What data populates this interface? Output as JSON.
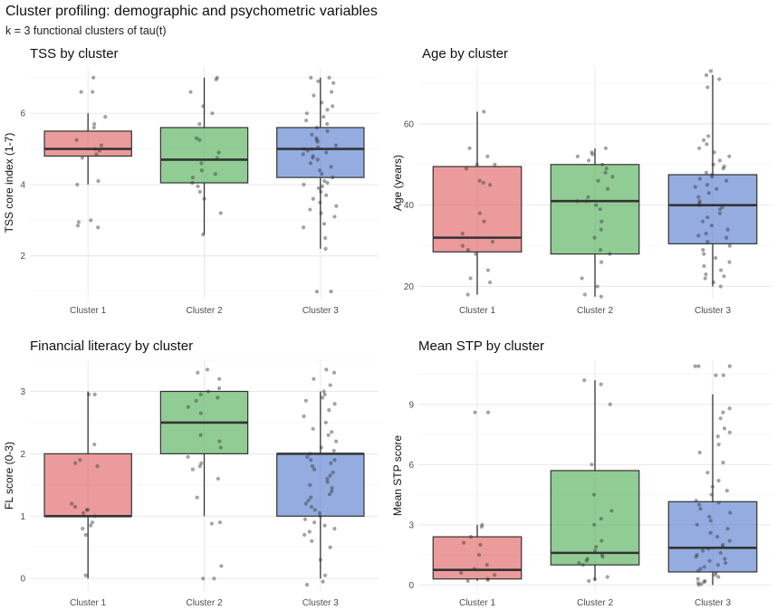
{
  "title": "Cluster profiling: demographic and psychometric variables",
  "subtitle": "k = 3 functional clusters of tau(t)",
  "colors": {
    "Cluster 1": "#e06666",
    "Cluster 2": "#58b05c",
    "Cluster 3": "#5b7fcf"
  },
  "chart_data": [
    {
      "type": "box",
      "title": "TSS by cluster",
      "xlabel": "",
      "ylabel": "TSS core index (1-7)",
      "categories": [
        "Cluster 1",
        "Cluster 2",
        "Cluster 3"
      ],
      "ylim": [
        0.8,
        7.3
      ],
      "yticks": [
        2,
        4,
        6
      ],
      "boxes": [
        {
          "q1": 4.8,
          "median": 5.0,
          "q3": 5.5,
          "whisker_low": 4.0,
          "whisker_high": 6.0
        },
        {
          "q1": 4.05,
          "median": 4.7,
          "q3": 5.6,
          "whisker_low": 2.6,
          "whisker_high": 7.0
        },
        {
          "q1": 4.2,
          "median": 5.0,
          "q3": 5.6,
          "whisker_low": 2.2,
          "whisker_high": 7.0
        }
      ],
      "points": [
        [
          7.0,
          6.6,
          6.6,
          5.9,
          5.7,
          5.6,
          5.25,
          5.1,
          5.0,
          4.95,
          4.85,
          4.75,
          4.1,
          4.0,
          3.0,
          2.95,
          2.85,
          2.8
        ],
        [
          7.0,
          6.95,
          6.6,
          6.2,
          6.0,
          5.7,
          5.3,
          5.25,
          4.9,
          4.75,
          4.6,
          4.4,
          4.3,
          4.2,
          4.05,
          3.95,
          3.8,
          3.6,
          3.2,
          2.6
        ],
        [
          7.0,
          7.0,
          6.9,
          6.85,
          6.6,
          6.5,
          6.3,
          6.2,
          6.1,
          6.0,
          5.9,
          5.8,
          5.7,
          5.6,
          5.5,
          5.4,
          5.3,
          5.25,
          5.2,
          5.1,
          5.05,
          5.0,
          5.0,
          4.95,
          4.9,
          4.85,
          4.8,
          4.75,
          4.7,
          4.6,
          4.5,
          4.4,
          4.3,
          4.2,
          4.1,
          4.05,
          4.0,
          3.95,
          3.9,
          3.8,
          3.7,
          3.6,
          3.5,
          3.4,
          3.3,
          3.2,
          3.1,
          2.9,
          2.8,
          2.5,
          2.2,
          1.0,
          1.0
        ]
      ]
    },
    {
      "type": "box",
      "title": "Age by cluster",
      "xlabel": "",
      "ylabel": "Age (years)",
      "categories": [
        "Cluster 1",
        "Cluster 2",
        "Cluster 3"
      ],
      "ylim": [
        17,
        74
      ],
      "yticks": [
        20,
        40,
        60
      ],
      "boxes": [
        {
          "q1": 28.5,
          "median": 32,
          "q3": 49.5,
          "whisker_low": 18,
          "whisker_high": 63
        },
        {
          "q1": 28,
          "median": 41,
          "q3": 50,
          "whisker_low": 17.5,
          "whisker_high": 54
        },
        {
          "q1": 30.5,
          "median": 40,
          "q3": 47.5,
          "whisker_low": 20,
          "whisker_high": 72
        }
      ],
      "points": [
        [
          63,
          54,
          52,
          50,
          50,
          49,
          46,
          45.5,
          45,
          38,
          36,
          33,
          31,
          30,
          29,
          28,
          24,
          22,
          21,
          18
        ],
        [
          54,
          53,
          52.5,
          52,
          51,
          50,
          49,
          48,
          47,
          46,
          44,
          42,
          41,
          41,
          40,
          39,
          36,
          34,
          32,
          29,
          28,
          26,
          22,
          20,
          18,
          17.5
        ],
        [
          73,
          72,
          71,
          69,
          57,
          56,
          55,
          54,
          53,
          52,
          51,
          50,
          49.5,
          49,
          48,
          47.5,
          47,
          46.5,
          46,
          45,
          44.5,
          44,
          43,
          42,
          41,
          40.5,
          40,
          39.5,
          39,
          38,
          37,
          36,
          35,
          34,
          33,
          32.5,
          32,
          31,
          30,
          29,
          28,
          27,
          26,
          25,
          24,
          23,
          22.5,
          22,
          21,
          20
        ]
      ]
    },
    {
      "type": "box",
      "title": "Financial literacy by cluster",
      "xlabel": "",
      "ylabel": "FL score (0-3)",
      "categories": [
        "Cluster 1",
        "Cluster 2",
        "Cluster 3"
      ],
      "ylim": [
        -0.2,
        3.5
      ],
      "yticks": [
        0,
        1,
        2,
        3
      ],
      "boxes": [
        {
          "q1": 1.0,
          "median": 1.0,
          "q3": 2.0,
          "whisker_low": 0.0,
          "whisker_high": 3.0
        },
        {
          "q1": 2.0,
          "median": 2.5,
          "q3": 3.0,
          "whisker_low": 1.0,
          "whisker_high": 3.0
        },
        {
          "q1": 1.0,
          "median": 2.0,
          "q3": 2.0,
          "whisker_low": 0.0,
          "whisker_high": 3.0
        }
      ],
      "points": [
        [
          2.95,
          2.95,
          2.15,
          1.9,
          1.85,
          1.8,
          1.2,
          1.15,
          1.1,
          1.1,
          1.05,
          1.0,
          0.9,
          0.85,
          0.8,
          0.7,
          0.05
        ],
        [
          3.35,
          3.3,
          3.2,
          3.05,
          3.0,
          2.95,
          2.9,
          2.85,
          2.75,
          2.65,
          2.3,
          2.2,
          2.1,
          1.95,
          1.85,
          1.8,
          1.75,
          1.6,
          1.3,
          0.9,
          0.88,
          0.2,
          0.0,
          0.0
        ],
        [
          3.35,
          3.3,
          3.2,
          3.1,
          3.0,
          2.95,
          2.9,
          2.85,
          2.8,
          2.7,
          2.6,
          2.5,
          2.4,
          2.35,
          2.3,
          2.2,
          2.1,
          2.05,
          2.0,
          1.95,
          1.9,
          1.9,
          1.85,
          1.8,
          1.75,
          1.7,
          1.65,
          1.6,
          1.55,
          1.5,
          1.45,
          1.4,
          1.35,
          1.3,
          1.25,
          1.2,
          1.15,
          1.1,
          1.05,
          1.0,
          0.95,
          0.9,
          0.85,
          0.8,
          0.75,
          0.7,
          0.6,
          0.5,
          0.3,
          0.05,
          -0.05,
          -0.1
        ]
      ]
    },
    {
      "type": "box",
      "title": "Mean STP by cluster",
      "xlabel": "",
      "ylabel": "Mean STP score",
      "categories": [
        "Cluster 1",
        "Cluster 2",
        "Cluster 3"
      ],
      "ylim": [
        -0.3,
        11.2
      ],
      "yticks": [
        0,
        3,
        6,
        9
      ],
      "boxes": [
        {
          "q1": 0.3,
          "median": 0.75,
          "q3": 2.4,
          "whisker_low": 0.2,
          "whisker_high": 3.0
        },
        {
          "q1": 1.0,
          "median": 1.6,
          "q3": 5.7,
          "whisker_low": 0.2,
          "whisker_high": 10.2
        },
        {
          "q1": 0.65,
          "median": 1.85,
          "q3": 4.15,
          "whisker_low": 0.0,
          "whisker_high": 9.5
        }
      ],
      "points": [
        [
          8.6,
          8.6,
          3.0,
          2.9,
          2.4,
          2.1,
          2.0,
          1.5,
          1.0,
          0.8,
          0.6,
          0.5,
          0.3,
          0.25,
          0.2
        ],
        [
          10.2,
          10.0,
          9.0,
          6.0,
          4.5,
          3.7,
          3.3,
          3.0,
          2.2,
          1.9,
          1.7,
          1.5,
          1.4,
          1.3,
          1.2,
          1.1,
          1.0,
          0.4,
          0.3,
          0.2
        ],
        [
          10.9,
          10.9,
          10.9,
          10.45,
          10.45,
          8.8,
          8.6,
          8.3,
          7.8,
          7.6,
          7.4,
          7.0,
          6.6,
          6.1,
          5.6,
          5.2,
          4.9,
          4.7,
          4.5,
          4.2,
          4.1,
          4.0,
          3.8,
          3.6,
          3.4,
          3.2,
          3.0,
          2.8,
          2.6,
          2.4,
          2.2,
          2.0,
          1.9,
          1.8,
          1.7,
          1.6,
          1.5,
          1.4,
          1.3,
          1.2,
          1.1,
          1.0,
          0.9,
          0.8,
          0.7,
          0.6,
          0.5,
          0.4,
          0.3,
          0.2,
          0.15,
          0.1,
          0.05,
          0.0
        ]
      ]
    }
  ]
}
